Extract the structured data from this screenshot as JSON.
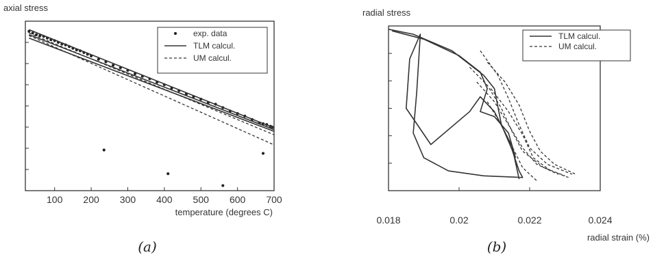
{
  "chart_data": [
    {
      "type": "line",
      "ylabel": "axial stress",
      "xlabel": "temperature (degrees C)",
      "caption": "(a)",
      "xlim": [
        20,
        700
      ],
      "ylim": [
        0,
        100
      ],
      "x_ticks": [
        100,
        200,
        300,
        400,
        500,
        600,
        700
      ],
      "y_tick_count": 7,
      "legend": {
        "placement": "top-right",
        "entries": [
          "exp. data",
          "TLM calcul.",
          "UM calcul."
        ]
      },
      "grid": false,
      "series": [
        {
          "name": "exp. data",
          "style": "dots",
          "points": [
            [
              30,
              94
            ],
            [
              40,
              93
            ],
            [
              50,
              92
            ],
            [
              60,
              91.5
            ],
            [
              70,
              91
            ],
            [
              80,
              90
            ],
            [
              90,
              89
            ],
            [
              100,
              88.5
            ],
            [
              110,
              87.5
            ],
            [
              120,
              86.5
            ],
            [
              130,
              86
            ],
            [
              140,
              85
            ],
            [
              150,
              84
            ],
            [
              160,
              83
            ],
            [
              170,
              82.5
            ],
            [
              180,
              81.5
            ],
            [
              190,
              80.5
            ],
            [
              200,
              79.5
            ],
            [
              220,
              77.5
            ],
            [
              240,
              76
            ],
            [
              260,
              74
            ],
            [
              280,
              72.5
            ],
            [
              300,
              71
            ],
            [
              320,
              69
            ],
            [
              340,
              67.5
            ],
            [
              360,
              66
            ],
            [
              380,
              64
            ],
            [
              400,
              62.5
            ],
            [
              420,
              60.5
            ],
            [
              440,
              59
            ],
            [
              460,
              57
            ],
            [
              480,
              55.5
            ],
            [
              500,
              54
            ],
            [
              520,
              52
            ],
            [
              540,
              51
            ],
            [
              560,
              49
            ],
            [
              580,
              47
            ],
            [
              600,
              45.5
            ],
            [
              620,
              44
            ],
            [
              640,
              42
            ],
            [
              660,
              40
            ],
            [
              670,
              39.5
            ],
            [
              680,
              39
            ],
            [
              690,
              38
            ],
            [
              695,
              37.5
            ],
            [
              235,
              24
            ],
            [
              410,
              10
            ],
            [
              560,
              3
            ],
            [
              670,
              22
            ]
          ]
        },
        {
          "name": "TLM calcul.",
          "style": "solid",
          "lines": [
            [
              [
                30,
                95
              ],
              [
                700,
                37
              ]
            ],
            [
              [
                30,
                90
              ],
              [
                700,
                35
              ]
            ],
            [
              [
                30,
                92
              ],
              [
                700,
                36
              ]
            ]
          ]
        },
        {
          "name": "UM calcul.",
          "style": "dashed",
          "lines": [
            [
              [
                30,
                93
              ],
              [
                700,
                33
              ]
            ],
            [
              [
                30,
                91.5
              ],
              [
                700,
                27
              ]
            ]
          ]
        }
      ]
    },
    {
      "type": "line",
      "ylabel": "radial stress",
      "xlabel": "radial strain (%)",
      "caption": "(b)",
      "xlim": [
        0.018,
        0.024
      ],
      "ylim": [
        0,
        100
      ],
      "x_ticks": [
        {
          "value": 0.018,
          "label": "0.018"
        },
        {
          "value": 0.02,
          "label": "0.02"
        },
        {
          "value": 0.022,
          "label": "0.022"
        },
        {
          "value": 0.024,
          "label": "0.024"
        }
      ],
      "y_tick_count": 5,
      "legend": {
        "placement": "top-right",
        "entries": [
          "TLM calcul.",
          "UM calcul."
        ]
      },
      "grid": false,
      "series": [
        {
          "name": "TLM calcul.",
          "style": "solid",
          "lines": [
            [
              [
                0.018,
                98
              ],
              [
                0.0187,
                95
              ],
              [
                0.0198,
                85
              ],
              [
                0.0207,
                70
              ],
              [
                0.021,
                62
              ],
              [
                0.0212,
                40
              ],
              [
                0.0215,
                25
              ],
              [
                0.0217,
                12
              ],
              [
                0.0218,
                8
              ],
              [
                0.0207,
                9
              ],
              [
                0.0197,
                12
              ],
              [
                0.019,
                20
              ],
              [
                0.0187,
                35
              ],
              [
                0.0188,
                60
              ],
              [
                0.0189,
                95
              ],
              [
                0.0186,
                80
              ],
              [
                0.0185,
                50
              ],
              [
                0.0192,
                28
              ],
              [
                0.0203,
                48
              ],
              [
                0.0206,
                57
              ],
              [
                0.021,
                48
              ],
              [
                0.0215,
                27
              ],
              [
                0.0217,
                7
              ]
            ],
            [
              [
                0.0181,
                97
              ],
              [
                0.019,
                92
              ],
              [
                0.02,
                82
              ],
              [
                0.0206,
                72
              ],
              [
                0.0208,
                62
              ],
              [
                0.0206,
                48
              ],
              [
                0.021,
                45
              ],
              [
                0.0214,
                35
              ],
              [
                0.0216,
                20
              ]
            ]
          ]
        },
        {
          "name": "UM calcul.",
          "style": "dashed",
          "lines": [
            [
              [
                0.0206,
                85
              ],
              [
                0.0211,
                70
              ],
              [
                0.0214,
                56
              ],
              [
                0.0217,
                40
              ],
              [
                0.022,
                26
              ],
              [
                0.0225,
                16
              ],
              [
                0.0232,
                10
              ]
            ],
            [
              [
                0.0203,
                75
              ],
              [
                0.0208,
                64
              ],
              [
                0.0212,
                50
              ],
              [
                0.0215,
                36
              ],
              [
                0.0218,
                24
              ],
              [
                0.0224,
                14
              ],
              [
                0.023,
                9
              ]
            ],
            [
              [
                0.0208,
                78
              ],
              [
                0.0213,
                66
              ],
              [
                0.0217,
                52
              ],
              [
                0.022,
                36
              ],
              [
                0.0223,
                24
              ],
              [
                0.0227,
                16
              ],
              [
                0.0233,
                10
              ]
            ],
            [
              [
                0.0205,
                66
              ],
              [
                0.021,
                54
              ],
              [
                0.0214,
                40
              ],
              [
                0.0218,
                26
              ],
              [
                0.0222,
                16
              ],
              [
                0.0228,
                10
              ]
            ],
            [
              [
                0.0209,
                62
              ],
              [
                0.0214,
                48
              ],
              [
                0.0218,
                34
              ],
              [
                0.0221,
                20
              ],
              [
                0.0226,
                12
              ],
              [
                0.0231,
                8
              ]
            ],
            [
              [
                0.0208,
                54
              ],
              [
                0.0212,
                40
              ],
              [
                0.0215,
                27
              ],
              [
                0.0218,
                14
              ],
              [
                0.0222,
                6
              ]
            ]
          ]
        }
      ]
    }
  ]
}
